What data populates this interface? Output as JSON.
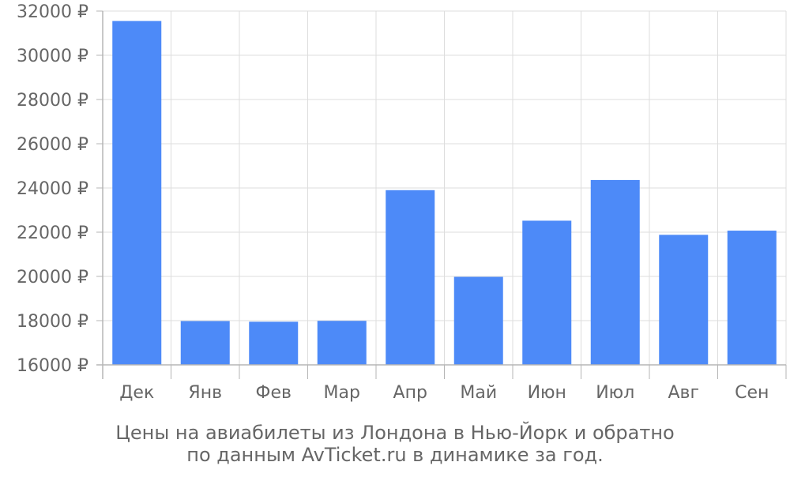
{
  "chart_data": {
    "type": "bar",
    "categories": [
      "Дек",
      "Янв",
      "Фев",
      "Мар",
      "Апр",
      "Май",
      "Июн",
      "Июл",
      "Авг",
      "Сен"
    ],
    "values": [
      31550,
      17980,
      17950,
      17990,
      23900,
      19980,
      22520,
      24360,
      21880,
      22070
    ],
    "ylim": [
      16000,
      32000
    ],
    "yticks": [
      "16000 ₽",
      "18000 ₽",
      "20000 ₽",
      "22000 ₽",
      "24000 ₽",
      "26000 ₽",
      "28000 ₽",
      "30000 ₽",
      "32000 ₽"
    ],
    "grid": true,
    "caption_line1": "Цены на авиабилеты из Лондона в Нью-Йорк и обратно",
    "caption_line2": "по данным AvTicket.ru в динамике за год.",
    "colors": {
      "bar": "#4d8af8",
      "grid": "#dddddd",
      "axis": "#b5b5b5",
      "text": "#666666"
    }
  }
}
